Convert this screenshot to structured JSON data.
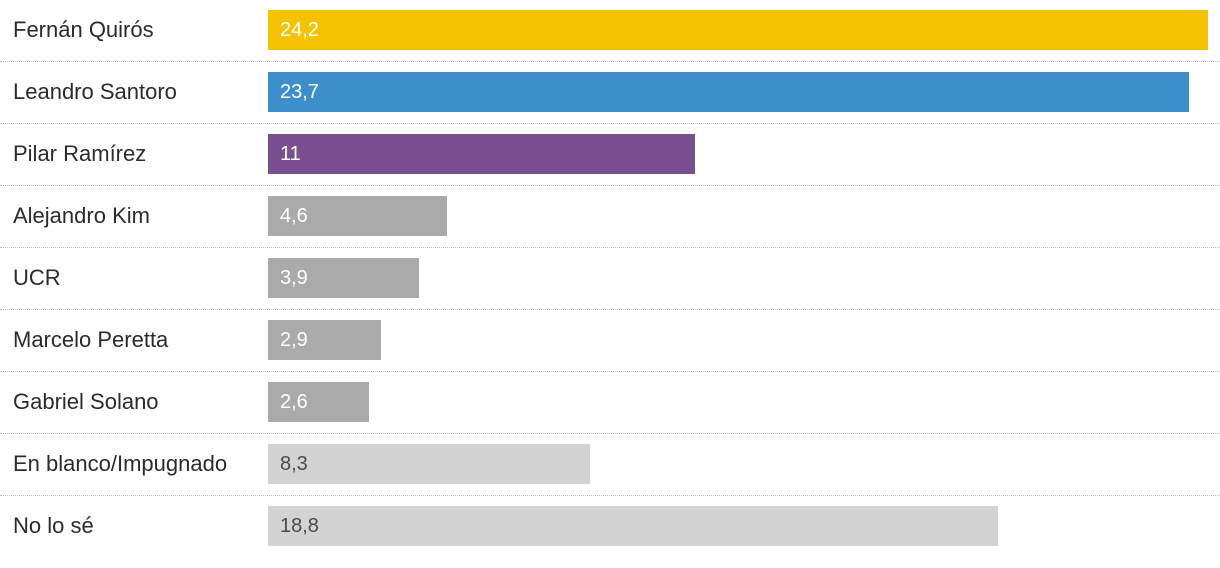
{
  "chart_data": {
    "type": "bar",
    "orientation": "horizontal",
    "title": "",
    "xlabel": "",
    "ylabel": "",
    "grid": false,
    "xlim": [
      0,
      24.2
    ],
    "bars": [
      {
        "label": "Fernán Quirós",
        "value": 24.2,
        "value_label": "24,2",
        "color": "#f5c200",
        "text_color": "#ffffff"
      },
      {
        "label": "Leandro Santoro",
        "value": 23.7,
        "value_label": "23,7",
        "color": "#3d8fcb",
        "text_color": "#ffffff"
      },
      {
        "label": "Pilar Ramírez",
        "value": 11,
        "value_label": "11",
        "color": "#7a4f8f",
        "text_color": "#ffffff"
      },
      {
        "label": "Alejandro Kim",
        "value": 4.6,
        "value_label": "4,6",
        "color": "#aaaaaa",
        "text_color": "#ffffff"
      },
      {
        "label": "UCR",
        "value": 3.9,
        "value_label": "3,9",
        "color": "#aaaaaa",
        "text_color": "#ffffff"
      },
      {
        "label": "Marcelo Peretta",
        "value": 2.9,
        "value_label": "2,9",
        "color": "#aaaaaa",
        "text_color": "#ffffff"
      },
      {
        "label": "Gabriel Solano",
        "value": 2.6,
        "value_label": "2,6",
        "color": "#aaaaaa",
        "text_color": "#ffffff"
      },
      {
        "label": "En blanco/Impugnado",
        "value": 8.3,
        "value_label": "8,3",
        "color": "#d3d3d3",
        "text_color": "#4a4a4a"
      },
      {
        "label": "No lo sé",
        "value": 18.8,
        "value_label": "18,8",
        "color": "#d3d3d3",
        "text_color": "#4a4a4a"
      }
    ]
  }
}
